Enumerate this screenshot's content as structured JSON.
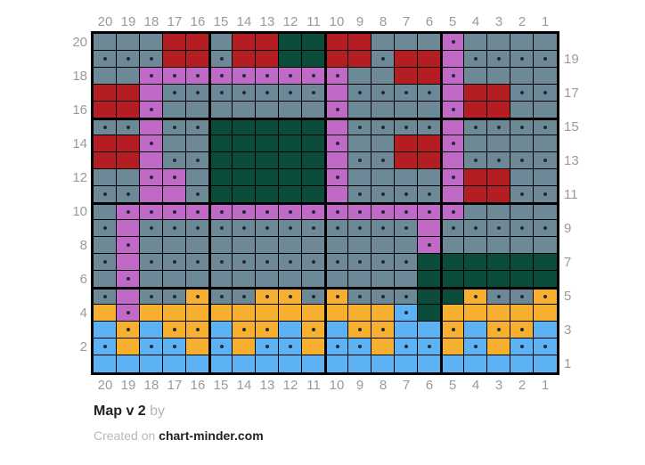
{
  "footer": {
    "title": "Map v 2",
    "by_label": "by",
    "created_prefix": "Created on",
    "site": "chart-minder.com"
  },
  "palette": {
    "S": {
      "name": "slate-gray",
      "hex": "#6d8997"
    },
    "R": {
      "name": "red",
      "hex": "#b41d21"
    },
    "P": {
      "name": "orchid-purple",
      "hex": "#c169c7"
    },
    "D": {
      "name": "dark-green",
      "hex": "#0b4c3a"
    },
    "Y": {
      "name": "amber-yellow",
      "hex": "#f7af2f"
    },
    "B": {
      "name": "light-blue",
      "hex": "#5cb2f2"
    }
  },
  "dot": {
    "meaning": "purl-stitch-dot",
    "hex": "#1f2b33"
  },
  "labels": {
    "color": "#9a9a9a",
    "top": [
      "20",
      "19",
      "18",
      "17",
      "16",
      "15",
      "14",
      "13",
      "12",
      "11",
      "10",
      "9",
      "8",
      "7",
      "6",
      "5",
      "4",
      "3",
      "2",
      "1"
    ],
    "bottom": [
      "20",
      "19",
      "18",
      "17",
      "16",
      "15",
      "14",
      "13",
      "12",
      "11",
      "10",
      "9",
      "8",
      "7",
      "6",
      "5",
      "4",
      "3",
      "2",
      "1"
    ],
    "left": [
      "20",
      "18",
      "16",
      "14",
      "12",
      "10",
      "8",
      "6",
      "4",
      "2"
    ],
    "right": [
      "19",
      "17",
      "15",
      "13",
      "11",
      "9",
      "7",
      "5",
      "3",
      "1"
    ]
  },
  "chart_data": {
    "type": "heatmap",
    "title": "Map v 2",
    "cols": 20,
    "rows": 20,
    "col_order": "left-to-right = columns 20 down to 1",
    "row_order": "top-to-bottom = rows 20 down to 1",
    "cell_encoding": "letter = color key in palette; lowercase = cell also shows a small center dot",
    "bold_gridline_every": 5,
    "cells": [
      "SSSRRSRRDDRRSSSpSSSS",
      "sssRRsRRDDRRsRRPssss",
      "SSpppppppppSSRRpSSSS",
      "RRPsssssssPssssPRRss",
      "RRpSSSSSSSpSSSSpRRSS",
      "ssPssDDDDDPssssPssss",
      "RRpSSDDDDDpSSRRpSSSS",
      "RRPssDDDDDPssRRPssss",
      "SSppSDDDDDpSSSSpRRSS",
      "ssPPsDDDDDPssssPRRss",
      "SpppppppppppppppSSSS",
      "sPssssssssssssPsssss",
      "SpSSSSSSSSSSSSpSSSSS",
      "sPssssssssssssDDDDDD",
      "SpSSSSSSSSSSSSDDDDDD",
      "sPssyssyysysssDDyssy",
      "YpYYYYYYYYYYYbDYYYYY",
      "ByByyByyByByyBByByyB",
      "bYbbYbYbbYbbYbbYbYbb",
      "BBBBBBBBBBBBBBBBBBBB"
    ]
  }
}
